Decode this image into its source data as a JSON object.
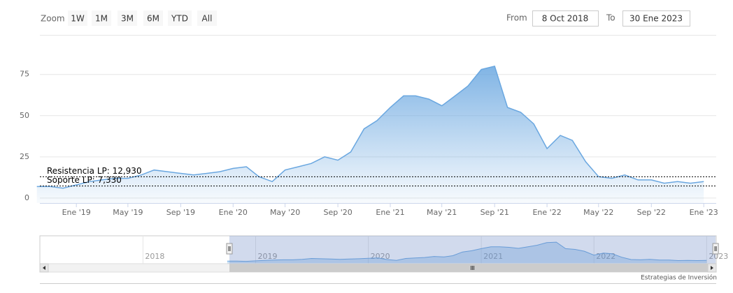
{
  "chart_data": {
    "type": "area",
    "zoom_label": "Zoom",
    "range_buttons": [
      "1W",
      "1M",
      "3M",
      "6M",
      "YTD",
      "All"
    ],
    "from_label": "From",
    "range_from": "8 Oct 2018",
    "to_label": "To",
    "range_to": "30 Ene 2023",
    "x": [
      "2018-10",
      "2018-11",
      "2018-12",
      "2019-01",
      "2019-02",
      "2019-03",
      "2019-04",
      "2019-05",
      "2019-06",
      "2019-07",
      "2019-08",
      "2019-09",
      "2019-10",
      "2019-11",
      "2019-12",
      "2020-01",
      "2020-02",
      "2020-03",
      "2020-04",
      "2020-05",
      "2020-06",
      "2020-07",
      "2020-08",
      "2020-09",
      "2020-10",
      "2020-11",
      "2020-12",
      "2021-01",
      "2021-02",
      "2021-03",
      "2021-04",
      "2021-05",
      "2021-06",
      "2021-07",
      "2021-08",
      "2021-09",
      "2021-10",
      "2021-11",
      "2021-12",
      "2022-01",
      "2022-02",
      "2022-03",
      "2022-04",
      "2022-05",
      "2022-06",
      "2022-07",
      "2022-08",
      "2022-09",
      "2022-10",
      "2022-11",
      "2022-12",
      "2023-01"
    ],
    "values": [
      7,
      7,
      6,
      8,
      10,
      11,
      12,
      12,
      14,
      17,
      16,
      15,
      14,
      15,
      16,
      18,
      19,
      13,
      10,
      17,
      19,
      21,
      25,
      23,
      28,
      42,
      47,
      55,
      62,
      62,
      60,
      56,
      62,
      68,
      78,
      80,
      55,
      52,
      45,
      30,
      38,
      35,
      22,
      13,
      12,
      14,
      11,
      11,
      9,
      10,
      9,
      10
    ],
    "color": "#6aa7e0",
    "xlim": [
      "2018-10-08",
      "2023-01-30"
    ],
    "xticks": [
      {
        "value": "2019-01",
        "label": "Ene '19"
      },
      {
        "value": "2019-05",
        "label": "May '19"
      },
      {
        "value": "2019-09",
        "label": "Sep '19"
      },
      {
        "value": "2020-01",
        "label": "Ene '20"
      },
      {
        "value": "2020-05",
        "label": "May '20"
      },
      {
        "value": "2020-09",
        "label": "Sep '20"
      },
      {
        "value": "2021-01",
        "label": "Ene '21"
      },
      {
        "value": "2021-05",
        "label": "May '21"
      },
      {
        "value": "2021-09",
        "label": "Sep '21"
      },
      {
        "value": "2022-01",
        "label": "Ene '22"
      },
      {
        "value": "2022-05",
        "label": "May '22"
      },
      {
        "value": "2022-09",
        "label": "Sep '22"
      },
      {
        "value": "2023-01",
        "label": "Ene '23"
      }
    ],
    "ylim": [
      -3,
      99
    ],
    "yticks": [
      0,
      25,
      50,
      75
    ],
    "grid": true,
    "plot_lines": [
      {
        "value": 12.93,
        "label": "Resistencia LP: 12,930"
      },
      {
        "value": 7.33,
        "label": "Soporte LP: 7,330"
      }
    ],
    "navigator": {
      "xlim": [
        "2017-02",
        "2023-02"
      ],
      "xticks": [
        {
          "value": "2018-01",
          "label": "2018"
        },
        {
          "value": "2019-01",
          "label": "2019"
        },
        {
          "value": "2020-01",
          "label": "2020"
        },
        {
          "value": "2021-01",
          "label": "2021"
        },
        {
          "value": "2022-01",
          "label": "2022"
        },
        {
          "value": "2023-01",
          "label": "2023"
        }
      ]
    },
    "credits": "Estrategias de Inversión"
  }
}
